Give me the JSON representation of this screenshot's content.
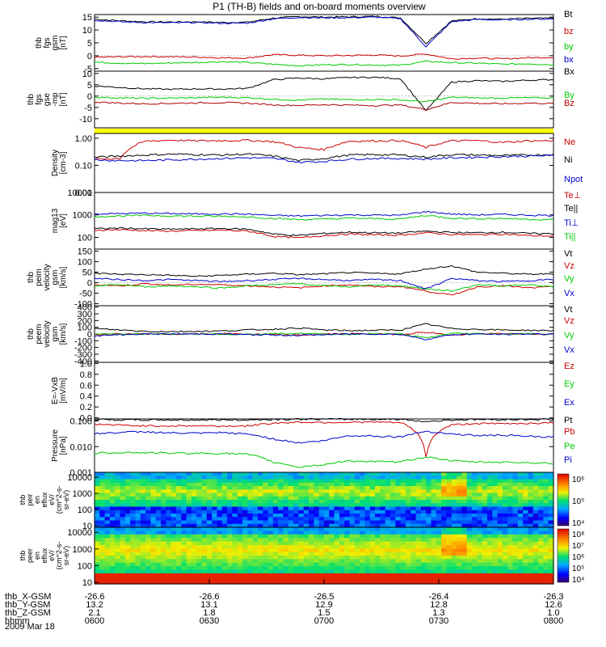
{
  "chart_data": {
    "type": "line",
    "title": "P1 (TH-B) fields and on-board moments overview",
    "date_label": "2009 Mar 18",
    "time_axis": {
      "row_labels": [
        "thb_X-GSM",
        "thb_Y-GSM",
        "thb_Z-GSM",
        "hhmm"
      ],
      "columns": [
        {
          "x": "-26.6",
          "y": "13.2",
          "z": "2.1",
          "t": "0600"
        },
        {
          "x": "-26.6",
          "y": "13.1",
          "z": "1.8",
          "t": "0630"
        },
        {
          "x": "-26.5",
          "y": "12.9",
          "z": "1.5",
          "t": "0700"
        },
        {
          "x": "-26.4",
          "y": "12.8",
          "z": "1.3",
          "t": "0730"
        },
        {
          "x": "-26.3",
          "y": "12.6",
          "z": "1.0",
          "t": "0800"
        }
      ]
    },
    "panels": [
      {
        "id": "fgs-gsm",
        "ylabel": [
          "thb",
          "fgs",
          "gsm",
          "[nT]"
        ],
        "scale": "linear",
        "ylim": [
          -6,
          16
        ],
        "ticks": [
          "15",
          "10",
          "5",
          "0",
          "-5"
        ],
        "tick_values": [
          15,
          10,
          5,
          0,
          -5
        ],
        "series": [
          {
            "name": "Bt",
            "color": "#000000",
            "values": [
              14.2,
              13.6,
              13.2,
              13.1,
              13.2,
              12.9,
              13.0,
              14.6,
              15.2,
              15.0,
              15.1,
              15.3,
              14.7,
              4.8,
              13.5,
              14.4,
              14.2,
              14.5,
              14.6
            ]
          },
          {
            "name": "bz",
            "color": "#cc0000",
            "values": [
              -0.6,
              -0.4,
              -0.3,
              -0.4,
              -0.5,
              -0.8,
              -0.9,
              0.4,
              0.2,
              0.0,
              0.1,
              0.3,
              -0.1,
              0.7,
              -1.2,
              -0.9,
              -1.2,
              -0.8,
              -0.6
            ]
          },
          {
            "name": "by",
            "color": "#00cc00",
            "values": [
              -2.5,
              -2.9,
              -3.1,
              -2.8,
              -2.6,
              -2.3,
              -2.6,
              -3.3,
              -3.9,
              -3.5,
              -3.4,
              -3.6,
              -3.7,
              -2.2,
              -2.7,
              -2.9,
              -3.3,
              -3.1,
              -3.5
            ]
          },
          {
            "name": "bx",
            "color": "#0000cc",
            "values": [
              13.8,
              13.2,
              12.9,
              12.8,
              12.9,
              12.6,
              12.7,
              14.3,
              14.9,
              14.7,
              14.8,
              15.0,
              14.4,
              3.5,
              13.2,
              14.1,
              13.9,
              14.2,
              14.3
            ]
          }
        ]
      },
      {
        "id": "fgs-gse",
        "ylabel": [
          "thb",
          "fgs",
          "gse",
          "-mp",
          "[nT]"
        ],
        "scale": "linear",
        "ylim": [
          -14,
          11
        ],
        "ticks": [
          "10",
          "5",
          "0",
          "-5",
          "-10"
        ],
        "tick_values": [
          10,
          5,
          0,
          -5,
          -10
        ],
        "series": [
          {
            "name": "Bx",
            "color": "#000000",
            "values": [
              4.5,
              3.8,
              3.2,
              3.0,
              3.2,
              3.1,
              3.4,
              7.2,
              8.0,
              7.6,
              8.2,
              8.3,
              7.7,
              -6.5,
              6.2,
              6.8,
              6.5,
              7.0,
              7.3
            ]
          },
          {
            "name": "By",
            "color": "#00cc00",
            "values": [
              -0.5,
              -0.8,
              -1.0,
              -0.9,
              -0.7,
              -0.5,
              -0.7,
              -1.4,
              -1.8,
              -1.3,
              -1.6,
              -1.5,
              -1.7,
              -2.5,
              -0.5,
              -0.8,
              -0.9,
              -0.7,
              -0.8
            ]
          },
          {
            "name": "Bz",
            "color": "#aa0000",
            "values": [
              -2.6,
              -3.1,
              -3.4,
              -3.2,
              -3.0,
              -2.9,
              -3.1,
              -3.9,
              -4.1,
              -3.8,
              -4.0,
              -4.2,
              -3.9,
              -6.0,
              -2.8,
              -3.2,
              -3.4,
              -3.1,
              -3.3
            ]
          }
        ]
      },
      {
        "id": "density",
        "ylabel": [
          "Density",
          "[cm-3]"
        ],
        "scale": "log",
        "ylim": [
          0.01,
          1.5
        ],
        "ticks": [
          "1.00",
          "0.10",
          "0.01"
        ],
        "tick_values": [
          1.0,
          0.1,
          0.01
        ],
        "series": [
          {
            "name": "Ne",
            "color": "#cc0000",
            "values": [
              0.17,
              0.18,
              0.78,
              0.85,
              0.8,
              0.82,
              0.84,
              0.75,
              0.45,
              0.38,
              0.78,
              0.8,
              0.82,
              0.45,
              0.8,
              0.82,
              0.7,
              0.8,
              0.82
            ]
          },
          {
            "name": "Ni",
            "color": "#000000",
            "values": [
              0.2,
              0.22,
              0.24,
              0.26,
              0.25,
              0.24,
              0.26,
              0.22,
              0.15,
              0.18,
              0.24,
              0.25,
              0.24,
              0.2,
              0.25,
              0.24,
              0.23,
              0.24,
              0.25
            ]
          },
          {
            "name": "Npot",
            "color": "#0000cc",
            "values": [
              0.16,
              0.15,
              0.15,
              0.16,
              0.17,
              0.18,
              0.19,
              0.18,
              0.13,
              0.14,
              0.17,
              0.18,
              0.18,
              0.17,
              0.19,
              0.2,
              0.21,
              0.22,
              0.23
            ]
          }
        ]
      },
      {
        "id": "moments-temp",
        "ylabel": [
          "mag13",
          "[eV]"
        ],
        "scale": "log",
        "ylim": [
          30,
          10000
        ],
        "ticks": [
          "10000",
          "1000",
          "100"
        ],
        "tick_values": [
          10000,
          1000,
          100
        ],
        "series": [
          {
            "name": "Te⊥",
            "color": "#cc0000",
            "values": [
              210,
              220,
              200,
              190,
              200,
              210,
              190,
              110,
              95,
              120,
              140,
              130,
              125,
              160,
              135,
              130,
              140,
              120,
              115
            ]
          },
          {
            "name": "Te||",
            "color": "#000000",
            "values": [
              240,
              260,
              240,
              230,
              240,
              250,
              230,
              140,
              120,
              150,
              170,
              160,
              155,
              190,
              165,
              160,
              170,
              150,
              145
            ]
          },
          {
            "name": "Ti⊥",
            "color": "#0000cc",
            "values": [
              1100,
              1150,
              1200,
              1150,
              1100,
              1120,
              1080,
              950,
              900,
              950,
              1000,
              980,
              960,
              1400,
              1100,
              1000,
              1050,
              980,
              950
            ]
          },
          {
            "name": "Ti||",
            "color": "#00cc00",
            "values": [
              850,
              900,
              950,
              900,
              880,
              870,
              820,
              700,
              620,
              650,
              720,
              680,
              650,
              950,
              720,
              680,
              700,
              640,
              620
            ]
          }
        ]
      },
      {
        "id": "peim-velocity",
        "ylabel": [
          "thb",
          "peim",
          "velocity",
          "gsm",
          "[km/s]"
        ],
        "scale": "linear",
        "ylim": [
          -110,
          160
        ],
        "ticks": [
          "150",
          "100",
          "50",
          "0",
          "-50",
          "-100"
        ],
        "tick_values": [
          150,
          100,
          50,
          0,
          -50,
          -100
        ],
        "series": [
          {
            "name": "Vt",
            "color": "#000000",
            "values": [
              45,
              40,
              38,
              35,
              30,
              35,
              40,
              45,
              38,
              42,
              48,
              44,
              42,
              65,
              80,
              50,
              45,
              40,
              42
            ]
          },
          {
            "name": "Vz",
            "color": "#cc0000",
            "values": [
              -10,
              -15,
              -5,
              -12,
              -8,
              -10,
              -15,
              -20,
              -25,
              -15,
              -10,
              -20,
              -18,
              -40,
              -60,
              -20,
              -15,
              -25,
              -20
            ]
          },
          {
            "name": "Vy",
            "color": "#00cc00",
            "values": [
              -15,
              -10,
              -20,
              -15,
              -20,
              -25,
              -15,
              -10,
              -5,
              -15,
              -20,
              -10,
              -15,
              -30,
              -40,
              -10,
              -15,
              -10,
              -20
            ]
          },
          {
            "name": "Vx",
            "color": "#0000cc",
            "values": [
              20,
              15,
              10,
              15,
              10,
              5,
              10,
              15,
              20,
              15,
              10,
              15,
              10,
              -30,
              20,
              10,
              5,
              10,
              15
            ]
          }
        ]
      },
      {
        "id": "peem-velocity",
        "ylabel": [
          "thb",
          "peem",
          "velocity",
          "gsm",
          "[km/s]"
        ],
        "scale": "linear",
        "ylim": [
          -420,
          420
        ],
        "ticks": [
          "400",
          "300",
          "200",
          "100",
          "0",
          "-100",
          "-200",
          "-300",
          "-400"
        ],
        "tick_values": [
          400,
          300,
          200,
          100,
          0,
          -100,
          -200,
          -300,
          -400
        ],
        "series": [
          {
            "name": "Vt",
            "color": "#000000",
            "values": [
              80,
              60,
              40,
              35,
              40,
              45,
              60,
              70,
              90,
              60,
              50,
              55,
              60,
              150,
              80,
              70,
              60,
              55,
              50
            ]
          },
          {
            "name": "Vz",
            "color": "#cc0000",
            "values": [
              -10,
              0,
              5,
              -5,
              0,
              5,
              0,
              -10,
              -20,
              0,
              5,
              0,
              -5,
              30,
              -20,
              0,
              5,
              0,
              -5
            ]
          },
          {
            "name": "Vy",
            "color": "#00cc00",
            "values": [
              5,
              0,
              -5,
              0,
              5,
              0,
              -5,
              5,
              10,
              0,
              -5,
              5,
              0,
              -60,
              10,
              5,
              0,
              5,
              0
            ]
          },
          {
            "name": "Vx",
            "color": "#0000cc",
            "values": [
              -30,
              -10,
              0,
              0,
              0,
              0,
              -10,
              -15,
              -20,
              -10,
              0,
              0,
              -5,
              -80,
              -10,
              0,
              -5,
              0,
              0
            ]
          }
        ]
      },
      {
        "id": "e-vxb",
        "ylabel": [
          "E=-VxB",
          "[mV/m]"
        ],
        "scale": "linear",
        "ylim": [
          -0.02,
          1.02
        ],
        "ticks": [
          "1.0",
          "0.8",
          "0.6",
          "0.4",
          "0.2",
          "0.0"
        ],
        "tick_values": [
          1.0,
          0.8,
          0.6,
          0.4,
          0.2,
          0.0
        ],
        "series": [
          {
            "name": "Ez",
            "color": "#cc0000",
            "values": []
          },
          {
            "name": "Ey",
            "color": "#00cc00",
            "values": []
          },
          {
            "name": "Ex",
            "color": "#0000cc",
            "values": []
          }
        ]
      },
      {
        "id": "pressure",
        "ylabel": [
          "Pressure",
          "[nPa]"
        ],
        "scale": "log",
        "ylim": [
          0.001,
          0.12
        ],
        "ticks": [
          "0.100",
          "0.010",
          "0.001"
        ],
        "tick_values": [
          0.1,
          0.01,
          0.001
        ],
        "series": [
          {
            "name": "Pt",
            "color": "#000000",
            "values": [
              0.115,
              0.11,
              0.11,
              0.11,
              0.11,
              0.11,
              0.11,
              0.115,
              0.118,
              0.118,
              0.117,
              0.118,
              0.116,
              0.095,
              0.11,
              0.115,
              0.113,
              0.115,
              0.117
            ]
          },
          {
            "name": "Pb",
            "color": "#cc0000",
            "values": [
              0.075,
              0.068,
              0.065,
              0.064,
              0.065,
              0.063,
              0.064,
              0.082,
              0.09,
              0.088,
              0.089,
              0.091,
              0.086,
              0.004,
              0.07,
              0.08,
              0.078,
              0.082,
              0.083
            ]
          },
          {
            "name": "Pe",
            "color": "#00cc00",
            "values": [
              0.0055,
              0.006,
              0.0058,
              0.0056,
              0.0055,
              0.0055,
              0.005,
              0.0025,
              0.0016,
              0.002,
              0.0028,
              0.0026,
              0.0025,
              0.004,
              0.0028,
              0.0025,
              0.0025,
              0.0024,
              0.0022
            ]
          },
          {
            "name": "Pi",
            "color": "#0000cc",
            "values": [
              0.032,
              0.036,
              0.038,
              0.034,
              0.033,
              0.035,
              0.031,
              0.02,
              0.014,
              0.017,
              0.027,
              0.026,
              0.024,
              0.04,
              0.031,
              0.027,
              0.028,
              0.025,
              0.023
            ]
          }
        ]
      }
    ],
    "spectrograms": [
      {
        "id": "peir-en-eflux",
        "ylabel": [
          "thb",
          "peir",
          "en",
          "eflux",
          "eV/",
          "(cm^2-s-",
          "sr-eV)"
        ],
        "ylim": [
          8,
          20000
        ],
        "ticks": [
          "10000",
          "1000",
          "100",
          "10"
        ],
        "tick_values": [
          10000,
          1000,
          100,
          10
        ],
        "colorbar_ticks": [
          "10⁶",
          "10⁵",
          "10⁴"
        ],
        "colorbar_values": [
          1000000,
          100000,
          10000
        ]
      },
      {
        "id": "peer-en-eflux",
        "ylabel": [
          "thb",
          "peer",
          "en",
          "eflux",
          "eV/",
          "(cm^2-s-",
          "sr-eV)"
        ],
        "ylim": [
          8,
          20000
        ],
        "ticks": [
          "10000",
          "1000",
          "100",
          "10"
        ],
        "tick_values": [
          10000,
          1000,
          100,
          10
        ],
        "colorbar_ticks": [
          "10⁸",
          "10⁷",
          "10⁶",
          "10⁵",
          "10⁴"
        ],
        "colorbar_values": [
          100000000,
          10000000,
          1000000,
          100000,
          10000
        ]
      }
    ],
    "colors": {
      "divider_band": "#ffff00"
    }
  }
}
